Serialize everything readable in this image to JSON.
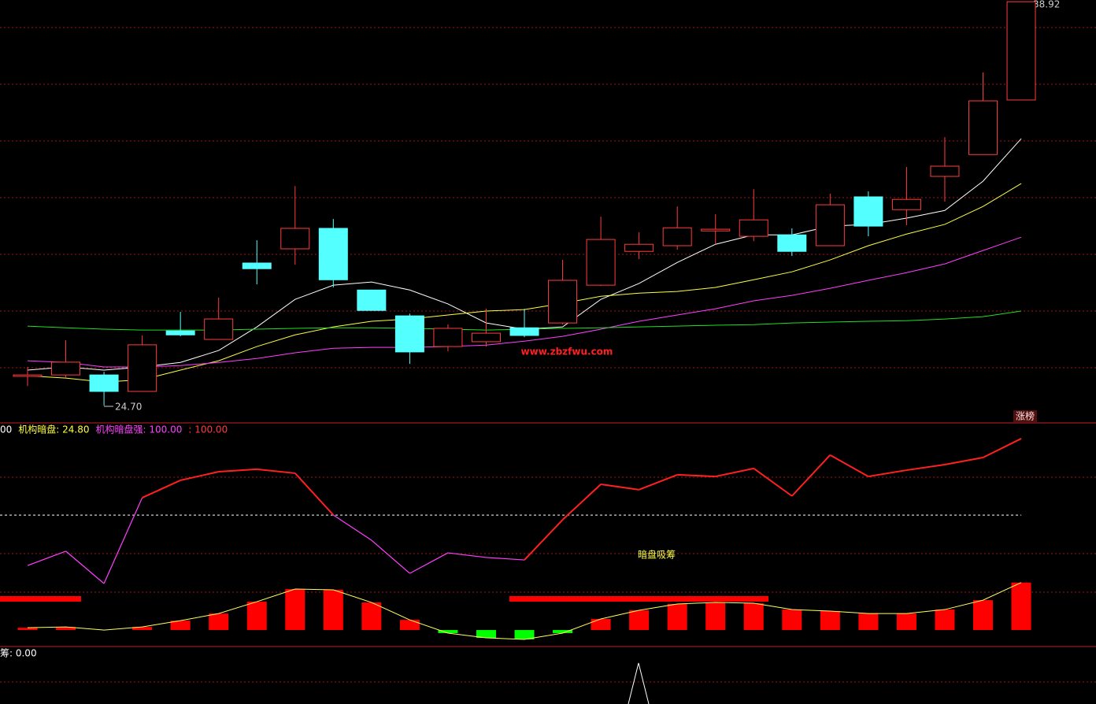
{
  "chart_data": [
    {
      "type": "candlestick",
      "open": [
        25.73,
        25.78,
        25.78,
        25.2,
        27.33,
        27.03,
        29.72,
        30.22,
        30.94,
        28.77,
        27.86,
        26.78,
        26.95,
        27.44,
        27.61,
        28.94,
        30.13,
        30.33,
        30.85,
        30.66,
        30.71,
        30.33,
        32.05,
        31.6,
        32.77,
        33.54,
        35.46
      ],
      "high": [
        26.06,
        27.0,
        25.89,
        27.17,
        28.0,
        28.5,
        30.52,
        32.43,
        31.27,
        28.77,
        27.94,
        27.56,
        28.11,
        28.11,
        29.83,
        31.35,
        30.8,
        31.71,
        31.44,
        32.32,
        30.94,
        32.16,
        32.24,
        33.1,
        34.15,
        36.43,
        38.92
      ],
      "low": [
        25.39,
        25.67,
        24.7,
        25.2,
        27.14,
        27.03,
        28.97,
        29.66,
        28.86,
        28.05,
        26.17,
        26.61,
        26.78,
        27.11,
        27.56,
        28.91,
        29.86,
        30.19,
        30.38,
        30.49,
        29.97,
        30.33,
        30.66,
        31.05,
        31.88,
        33.54,
        35.46
      ],
      "close": [
        25.78,
        26.23,
        25.2,
        26.84,
        27.19,
        27.75,
        29.52,
        30.94,
        29.13,
        28.05,
        26.59,
        27.42,
        27.25,
        27.17,
        29.11,
        30.55,
        30.38,
        30.96,
        30.91,
        31.24,
        30.13,
        31.77,
        31.02,
        31.96,
        33.13,
        35.43,
        38.92
      ],
      "up_color": "#ff3c3c",
      "down_color": "#54ffff",
      "series": [
        {
          "color": "#ffffff",
          "values": [
            25.95,
            26.06,
            25.95,
            26.06,
            26.22,
            26.64,
            27.47,
            28.44,
            28.94,
            29.05,
            28.77,
            28.28,
            27.61,
            27.39,
            27.47,
            28.44,
            29.0,
            29.74,
            30.38,
            30.71,
            30.71,
            31.02,
            31.08,
            31.3,
            31.57,
            32.6,
            34.1
          ]
        },
        {
          "color": "#ffff40",
          "values": [
            25.75,
            25.67,
            25.53,
            25.61,
            25.95,
            26.28,
            26.78,
            27.19,
            27.47,
            27.67,
            27.75,
            27.89,
            28.03,
            28.08,
            28.3,
            28.55,
            28.66,
            28.72,
            28.86,
            29.13,
            29.41,
            29.83,
            30.33,
            30.74,
            31.08,
            31.71,
            32.52
          ]
        },
        {
          "color": "#ff40ff",
          "values": [
            26.28,
            26.22,
            26.06,
            26.06,
            26.11,
            26.22,
            26.36,
            26.56,
            26.72,
            26.75,
            26.75,
            26.78,
            26.83,
            26.97,
            27.14,
            27.39,
            27.67,
            27.89,
            28.11,
            28.39,
            28.58,
            28.83,
            29.11,
            29.38,
            29.69,
            30.16,
            30.63
          ]
        },
        {
          "color": "#20e020",
          "values": [
            27.5,
            27.44,
            27.39,
            27.36,
            27.36,
            27.36,
            27.39,
            27.42,
            27.44,
            27.44,
            27.42,
            27.39,
            27.36,
            27.39,
            27.42,
            27.44,
            27.47,
            27.5,
            27.53,
            27.55,
            27.61,
            27.64,
            27.67,
            27.69,
            27.75,
            27.83,
            28.03
          ]
        }
      ],
      "ylim": [
        24.12,
        38.98
      ],
      "max_label": "38.92",
      "min_label": "24.70",
      "watermark": "www.zbzfwu.com",
      "badge": "涨榜"
    },
    {
      "type": "indicator",
      "header": [
        {
          "text": "00",
          "color": "#ffffff"
        },
        {
          "text": "机构暗盘: 24.80",
          "color": "#ffff40"
        },
        {
          "text": "机构暗盘强: 100.00",
          "color": "#ff40ff"
        },
        {
          "text": ": 100.00",
          "color": "#ff3c3c"
        }
      ],
      "line": [
        33.7,
        41.2,
        24.3,
        69.1,
        78.2,
        82.7,
        84.0,
        81.9,
        60.1,
        46.9,
        29.6,
        40.3,
        37.9,
        36.6,
        57.6,
        76.1,
        73.3,
        81.1,
        80.2,
        84.4,
        70.0,
        91.4,
        80.2,
        83.5,
        86.4,
        90.1,
        100.0
      ],
      "segment_colors": [
        "#ff40ff",
        "#ff40ff",
        "#ff40ff",
        "#ff2020",
        "#ff2020",
        "#ff2020",
        "#ff2020",
        "#ff2020",
        "#ff40ff",
        "#ff40ff",
        "#ff40ff",
        "#ff40ff",
        "#ff40ff",
        "#ff2020",
        "#ff2020",
        "#ff2020",
        "#ff2020",
        "#ff2020",
        "#ff2020",
        "#ff2020",
        "#ff2020",
        "#ff2020",
        "#ff2020",
        "#ff2020",
        "#ff2020",
        "#ff2020"
      ],
      "bars": [
        1.2,
        1.6,
        0.0,
        1.6,
        4.9,
        8.6,
        14.8,
        21.4,
        21.0,
        14.4,
        5.3,
        -1.6,
        -4.1,
        -4.9,
        -1.6,
        5.8,
        10.3,
        13.6,
        14.4,
        14.0,
        10.7,
        9.9,
        8.6,
        8.6,
        10.7,
        15.6,
        24.8
      ],
      "bar_up_color": "#ff0000",
      "bar_down_color": "#00ff00",
      "bar_line_color": "#ffff60",
      "reference_line": 60,
      "ylim": [
        -8.2,
        108.2
      ],
      "annotation": "暗盘吸筹"
    },
    {
      "type": "indicator",
      "header": [
        {
          "text": "筹: 0.00",
          "color": "#ffffff"
        }
      ]
    }
  ]
}
